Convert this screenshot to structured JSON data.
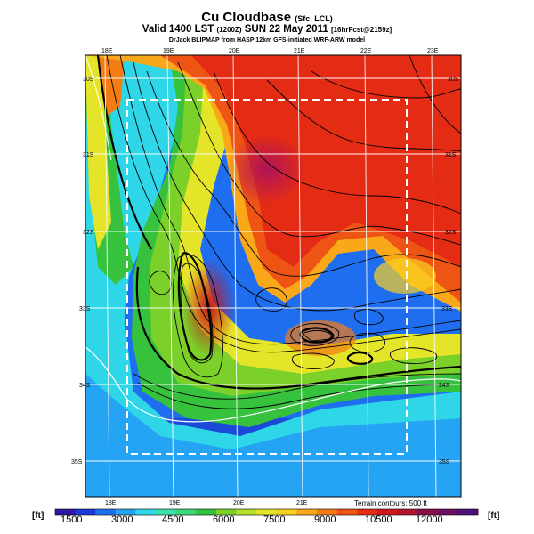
{
  "title": {
    "main": "Cu Cloudbase",
    "qualifier": "(Sfc. LCL)"
  },
  "subtitle": {
    "valid": "Valid 1400 LST",
    "zulu": "(1200Z)",
    "date": "SUN 22 May 2011",
    "forecast": "[16hrFcst@2159z]"
  },
  "credit": "DrJack BLIPMAP from HASP 12km GFS-initiated WRF-ARW model",
  "top_lon_labels": [
    "18E",
    "19E",
    "20E",
    "21E",
    "22E",
    "23E"
  ],
  "bottom_lon_labels": [
    "18E",
    "19E",
    "20E",
    "21E"
  ],
  "left_lat_labels": [
    "30S",
    "31S",
    "32S",
    "33S",
    "34S",
    "35S"
  ],
  "right_lat_labels": [
    "30S",
    "31S",
    "32S",
    "33S",
    "34S",
    "35S"
  ],
  "terrain_note": "Terrain contours: 500 ft",
  "colorbar": {
    "unit": "[ft]",
    "ticks": [
      "1500",
      "3000",
      "4500",
      "6000",
      "7500",
      "9000",
      "10500",
      "12000"
    ],
    "colors": [
      "#2b18a8",
      "#1c3ad6",
      "#1f6ef0",
      "#26a4f4",
      "#2ed6e8",
      "#3ee0b0",
      "#3ed676",
      "#36c23c",
      "#7cd02a",
      "#b8e028",
      "#e4e428",
      "#f8d020",
      "#f8a818",
      "#f47c14",
      "#ee5414",
      "#e42c14",
      "#d01818",
      "#b01430",
      "#8c1048",
      "#6c1060",
      "#501078"
    ]
  },
  "dashed_box_note": "",
  "colors": {
    "sea_deep": "#1f6ef0",
    "land_low": "#36c23c",
    "land_high": "#e42c14"
  }
}
